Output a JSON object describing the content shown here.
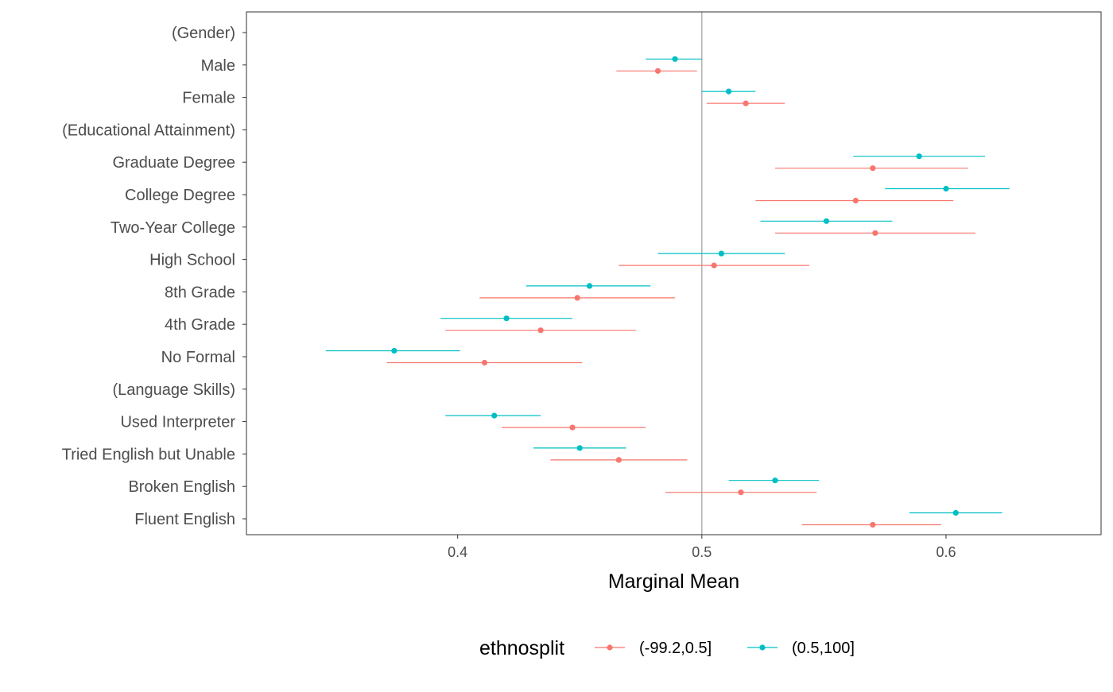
{
  "chart_data": {
    "type": "scatter",
    "subtype": "dot-with-horizontal-error-bars",
    "title": "",
    "xlabel": "Marginal Mean",
    "ylabel": "",
    "xlim": [
      0.3135,
      0.6635
    ],
    "x_ticks": [
      0.4,
      0.5,
      0.6
    ],
    "x_tick_labels": [
      "0.4",
      "0.5",
      "0.6"
    ],
    "reference_line": 0.5,
    "grid": false,
    "legend": {
      "position": "bottom",
      "title": "ethnosplit"
    },
    "categories": [
      "(Gender)",
      "Male",
      "Female",
      "(Educational Attainment)",
      "Graduate Degree",
      "College Degree",
      "Two-Year College",
      "High School",
      "8th Grade",
      "4th Grade",
      "No Formal",
      "(Language Skills)",
      "Used Interpreter",
      "Tried English but Unable",
      "Broken English",
      "Fluent English"
    ],
    "series": [
      {
        "name": "(-99.2,0.5]",
        "color": "#F8766D",
        "points": [
          {
            "y": "Male",
            "x": 0.482,
            "lower": 0.465,
            "upper": 0.498
          },
          {
            "y": "Female",
            "x": 0.518,
            "lower": 0.502,
            "upper": 0.534
          },
          {
            "y": "Graduate Degree",
            "x": 0.57,
            "lower": 0.53,
            "upper": 0.609
          },
          {
            "y": "College Degree",
            "x": 0.563,
            "lower": 0.522,
            "upper": 0.603
          },
          {
            "y": "Two-Year College",
            "x": 0.571,
            "lower": 0.53,
            "upper": 0.612
          },
          {
            "y": "High School",
            "x": 0.505,
            "lower": 0.466,
            "upper": 0.544
          },
          {
            "y": "8th Grade",
            "x": 0.449,
            "lower": 0.409,
            "upper": 0.489
          },
          {
            "y": "4th Grade",
            "x": 0.434,
            "lower": 0.395,
            "upper": 0.473
          },
          {
            "y": "No Formal",
            "x": 0.411,
            "lower": 0.371,
            "upper": 0.451
          },
          {
            "y": "Used Interpreter",
            "x": 0.447,
            "lower": 0.418,
            "upper": 0.477
          },
          {
            "y": "Tried English but Unable",
            "x": 0.466,
            "lower": 0.438,
            "upper": 0.494
          },
          {
            "y": "Broken English",
            "x": 0.516,
            "lower": 0.485,
            "upper": 0.547
          },
          {
            "y": "Fluent English",
            "x": 0.57,
            "lower": 0.541,
            "upper": 0.598
          }
        ]
      },
      {
        "name": "(0.5,100]",
        "color": "#00BFC4",
        "points": [
          {
            "y": "Male",
            "x": 0.489,
            "lower": 0.477,
            "upper": 0.5
          },
          {
            "y": "Female",
            "x": 0.511,
            "lower": 0.5,
            "upper": 0.522
          },
          {
            "y": "Graduate Degree",
            "x": 0.589,
            "lower": 0.562,
            "upper": 0.616
          },
          {
            "y": "College Degree",
            "x": 0.6,
            "lower": 0.575,
            "upper": 0.626
          },
          {
            "y": "Two-Year College",
            "x": 0.551,
            "lower": 0.524,
            "upper": 0.578
          },
          {
            "y": "High School",
            "x": 0.508,
            "lower": 0.482,
            "upper": 0.534
          },
          {
            "y": "8th Grade",
            "x": 0.454,
            "lower": 0.428,
            "upper": 0.479
          },
          {
            "y": "4th Grade",
            "x": 0.42,
            "lower": 0.393,
            "upper": 0.447
          },
          {
            "y": "No Formal",
            "x": 0.374,
            "lower": 0.346,
            "upper": 0.401
          },
          {
            "y": "Used Interpreter",
            "x": 0.415,
            "lower": 0.395,
            "upper": 0.434
          },
          {
            "y": "Tried English but Unable",
            "x": 0.45,
            "lower": 0.431,
            "upper": 0.469
          },
          {
            "y": "Broken English",
            "x": 0.53,
            "lower": 0.511,
            "upper": 0.548
          },
          {
            "y": "Fluent English",
            "x": 0.604,
            "lower": 0.585,
            "upper": 0.623
          }
        ]
      }
    ]
  }
}
